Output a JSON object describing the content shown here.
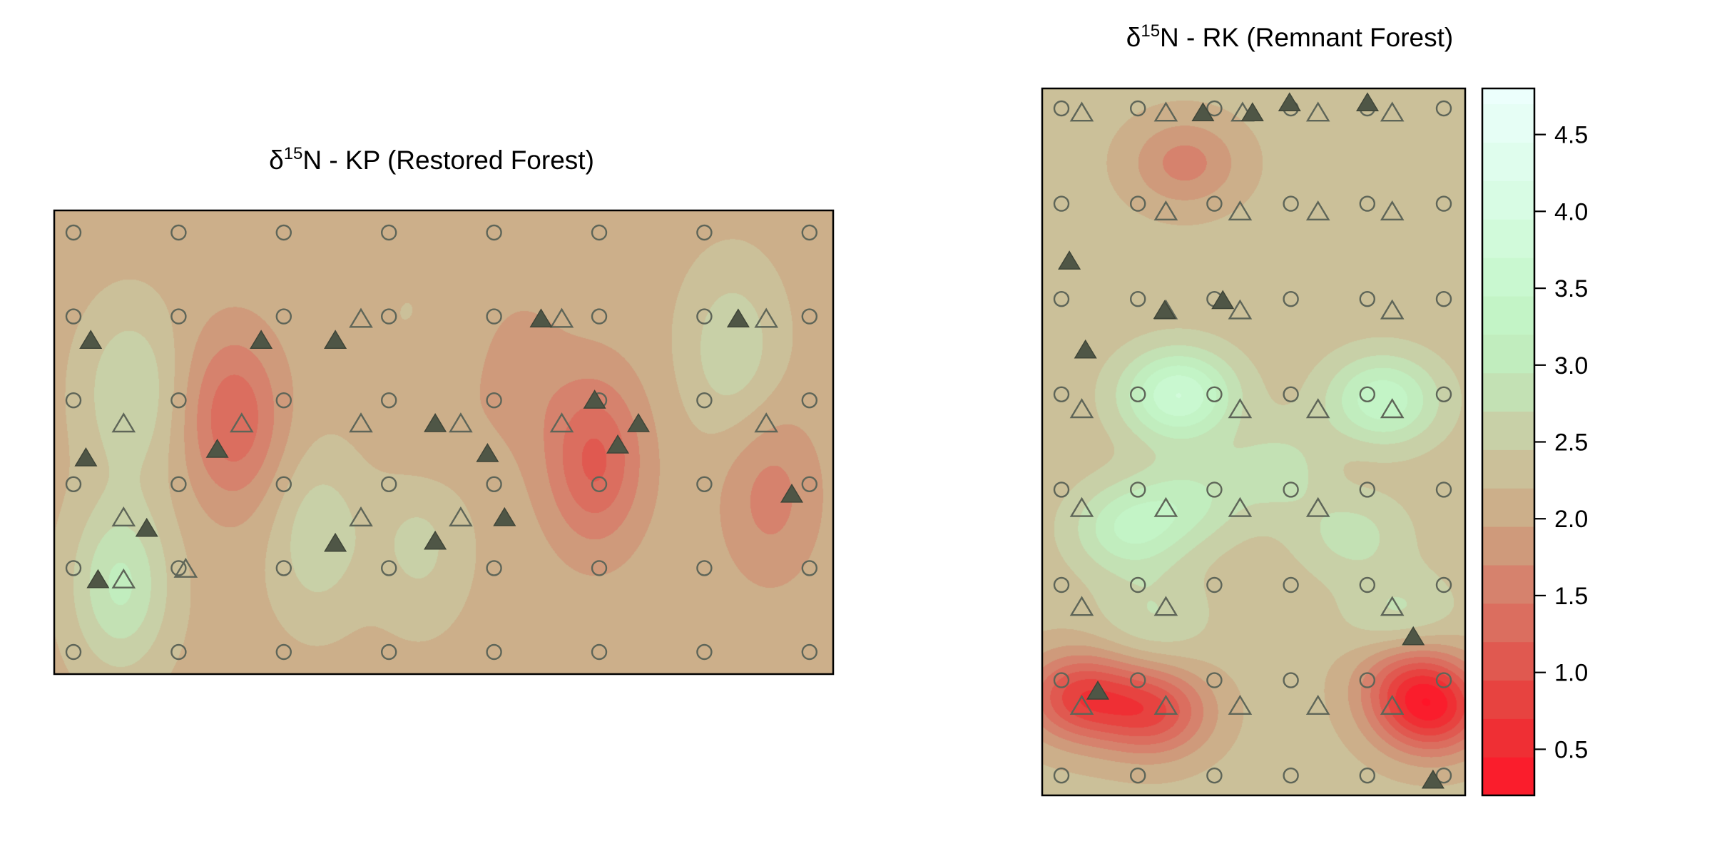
{
  "chart_data": [
    {
      "type": "heatmap",
      "title": {
        "symbol": "δ",
        "superscript": "15",
        "text": "N - KP (Restored Forest)"
      },
      "xlabel": "",
      "ylabel": "",
      "grid": false,
      "colorscale": "red-tan-green (low δ15N red, high δ15N pale green)",
      "grid_points_circles": {
        "cols": 8,
        "rows": 6
      },
      "grid_points_rows_y": [
        0.6,
        4.5,
        8.4,
        12.3,
        16.2,
        20.1
      ],
      "value_field_bumps": [
        {
          "x": 14.7,
          "y": 9.7,
          "v": -0.85
        },
        {
          "x": 44.4,
          "y": 11.7,
          "v": -0.95
        },
        {
          "x": 30.4,
          "y": 10.2,
          "v": -0.25
        },
        {
          "x": 38.4,
          "y": 7.6,
          "v": -0.25
        },
        {
          "x": 58.8,
          "y": 13.3,
          "v": -0.5
        },
        {
          "x": 19.6,
          "y": 14.3,
          "v": -0.15
        },
        {
          "x": 5.4,
          "y": 17.5,
          "v": 0.9
        },
        {
          "x": 6.2,
          "y": 8.5,
          "v": 0.6
        },
        {
          "x": 21.3,
          "y": 15.1,
          "v": 0.65
        },
        {
          "x": 30.0,
          "y": 15.3,
          "v": 0.45
        },
        {
          "x": 55.7,
          "y": 6.5,
          "v": 0.55
        },
        {
          "x": 29.3,
          "y": 6.0,
          "v": 0.15
        }
      ],
      "triangles_filled": [
        [
          3.0,
          6.1
        ],
        [
          2.6,
          11.6
        ],
        [
          7.6,
          14.9
        ],
        [
          3.6,
          17.3
        ],
        [
          13.4,
          11.2
        ],
        [
          17.0,
          6.1
        ],
        [
          23.1,
          6.1
        ],
        [
          23.1,
          15.6
        ],
        [
          31.3,
          10.0
        ],
        [
          35.6,
          11.4
        ],
        [
          40.0,
          5.1
        ],
        [
          44.4,
          8.9
        ],
        [
          48.0,
          10.0
        ],
        [
          46.3,
          11.0
        ],
        [
          56.2,
          5.1
        ],
        [
          31.3,
          15.5
        ],
        [
          37.0,
          14.4
        ],
        [
          60.6,
          13.3
        ]
      ],
      "triangles_open": [
        [
          5.7,
          10.0
        ],
        [
          15.4,
          10.0
        ],
        [
          25.2,
          5.1
        ],
        [
          25.2,
          10.0
        ],
        [
          33.4,
          10.0
        ],
        [
          41.7,
          5.1
        ],
        [
          41.7,
          10.0
        ],
        [
          58.5,
          5.1
        ],
        [
          58.5,
          10.0
        ],
        [
          5.7,
          14.4
        ],
        [
          25.2,
          14.4
        ],
        [
          33.4,
          14.4
        ],
        [
          5.7,
          17.3
        ],
        [
          10.8,
          16.8
        ]
      ]
    },
    {
      "type": "heatmap",
      "title": {
        "symbol": "δ",
        "superscript": "15",
        "text": "N - RK (Remnant Forest)"
      },
      "xlabel": "",
      "ylabel": "",
      "grid": false,
      "colorbar": {
        "ticks": [
          "0.5",
          "1.0",
          "1.5",
          "2.0",
          "2.5",
          "3.0",
          "3.5",
          "4.0",
          "4.5"
        ],
        "range": [
          0.2,
          4.8
        ]
      },
      "grid_points_circles": {
        "cols": 6,
        "rows": 8
      },
      "value_field_bumps": [
        {
          "x": 11.0,
          "y": 31.0,
          "v": 1.4
        },
        {
          "x": 20.5,
          "y": 38.5,
          "v": 1.3
        },
        {
          "x": 27.5,
          "y": 31.5,
          "v": 1.1
        },
        {
          "x": 7.0,
          "y": 44.5,
          "v": 0.9
        },
        {
          "x": 12.0,
          "y": 41.5,
          "v": 0.6
        },
        {
          "x": 9.0,
          "y": 53.5,
          "v": 0.4
        },
        {
          "x": 29.0,
          "y": 53.5,
          "v": 0.5
        },
        {
          "x": 25.0,
          "y": 45.0,
          "v": 0.5
        },
        {
          "x": 3.0,
          "y": 61.5,
          "v": -1.4
        },
        {
          "x": 9.0,
          "y": 63.0,
          "v": -1.3
        },
        {
          "x": 31.5,
          "y": 63.0,
          "v": -1.6
        },
        {
          "x": 29.8,
          "y": 59.5,
          "v": -0.9
        },
        {
          "x": 21.5,
          "y": 38.5,
          "v": -0.9
        },
        {
          "x": 11.5,
          "y": 7.5,
          "v": -0.7
        }
      ],
      "triangles_filled": [
        [
          2.2,
          17.5
        ],
        [
          9.9,
          22.5
        ],
        [
          3.5,
          26.5
        ],
        [
          13.0,
          2.5
        ],
        [
          17.0,
          2.5
        ],
        [
          20.0,
          1.5
        ],
        [
          26.3,
          1.5
        ],
        [
          14.6,
          21.5
        ],
        [
          30.0,
          55.5
        ],
        [
          31.6,
          70.0
        ],
        [
          4.5,
          61.0
        ]
      ],
      "triangles_open": [
        [
          3.2,
          2.5
        ],
        [
          10.0,
          2.5
        ],
        [
          16.2,
          2.5
        ],
        [
          22.3,
          2.5
        ],
        [
          28.3,
          2.5
        ],
        [
          10.0,
          12.5
        ],
        [
          16.0,
          12.5
        ],
        [
          22.3,
          12.5
        ],
        [
          28.3,
          12.5
        ],
        [
          10.0,
          22.5
        ],
        [
          16.0,
          22.5
        ],
        [
          28.3,
          22.5
        ],
        [
          3.2,
          32.5
        ],
        [
          16.0,
          32.5
        ],
        [
          22.3,
          32.5
        ],
        [
          28.3,
          32.5
        ],
        [
          3.2,
          42.5
        ],
        [
          10.0,
          42.5
        ],
        [
          16.0,
          42.5
        ],
        [
          22.3,
          42.5
        ],
        [
          3.2,
          52.5
        ],
        [
          10.0,
          52.5
        ],
        [
          28.3,
          52.5
        ],
        [
          3.2,
          62.5
        ],
        [
          10.0,
          62.5
        ],
        [
          16.0,
          62.5
        ],
        [
          22.3,
          62.5
        ],
        [
          28.3,
          62.5
        ]
      ]
    }
  ]
}
